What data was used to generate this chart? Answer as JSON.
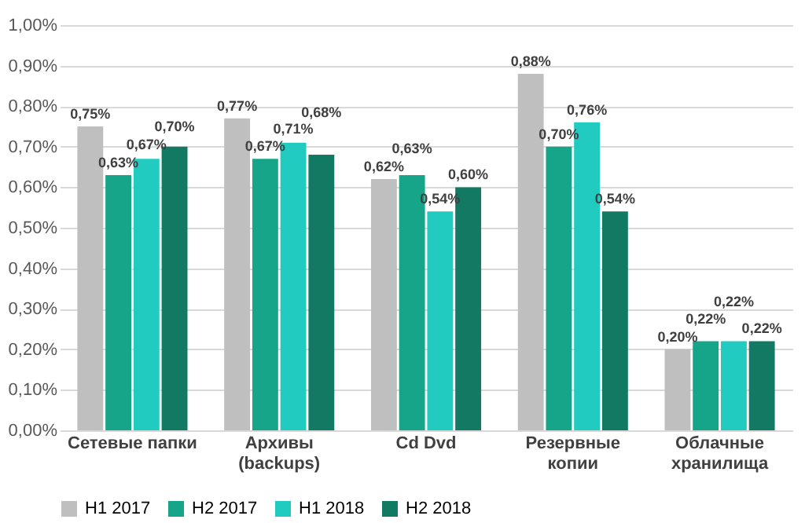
{
  "chart_data": {
    "type": "bar",
    "categories": [
      "Сетевые папки",
      "Архивы\n(backups)",
      "Cd Dvd",
      "Резервные\nкопии",
      "Облачные\nхранилища"
    ],
    "series": [
      {
        "name": "H1 2017",
        "color": "#bfbfbf",
        "values": [
          0.75,
          0.77,
          0.62,
          0.88,
          0.2
        ],
        "value_labels": [
          "0,75%",
          "0,77%",
          "0,62%",
          "0,88%",
          "0,20%"
        ]
      },
      {
        "name": "H2 2017",
        "color": "#16a589",
        "values": [
          0.63,
          0.67,
          0.63,
          0.7,
          0.22
        ],
        "value_labels": [
          "0,63%",
          "0,67%",
          "0,63%",
          "0,70%",
          "0,22%"
        ]
      },
      {
        "name": "H1 2018",
        "color": "#21cbc0",
        "values": [
          0.67,
          0.71,
          0.54,
          0.76,
          0.22
        ],
        "value_labels": [
          "0,67%",
          "0,71%",
          "0,54%",
          "0,76%",
          "0,22%"
        ]
      },
      {
        "name": "H2 2018",
        "color": "#127a63",
        "values": [
          0.7,
          0.68,
          0.6,
          0.54,
          0.22
        ],
        "value_labels": [
          "0,70%",
          "0,68%",
          "0,60%",
          "0,54%",
          "0,22%"
        ]
      }
    ],
    "ylim": [
      0,
      1.0
    ],
    "yticks": [
      {
        "value": 0,
        "label": "0,00%"
      },
      {
        "value": 0.1,
        "label": "0,10%"
      },
      {
        "value": 0.2,
        "label": "0,20%"
      },
      {
        "value": 0.3,
        "label": "0,30%"
      },
      {
        "value": 0.4,
        "label": "0,40%"
      },
      {
        "value": 0.5,
        "label": "0,50%"
      },
      {
        "value": 0.6,
        "label": "0,60%"
      },
      {
        "value": 0.7,
        "label": "0,70%"
      },
      {
        "value": 0.8,
        "label": "0,80%"
      },
      {
        "value": 0.9,
        "label": "0,90%"
      },
      {
        "value": 1.0,
        "label": "1,00%"
      }
    ],
    "grid": "y",
    "legend": "bottom"
  }
}
